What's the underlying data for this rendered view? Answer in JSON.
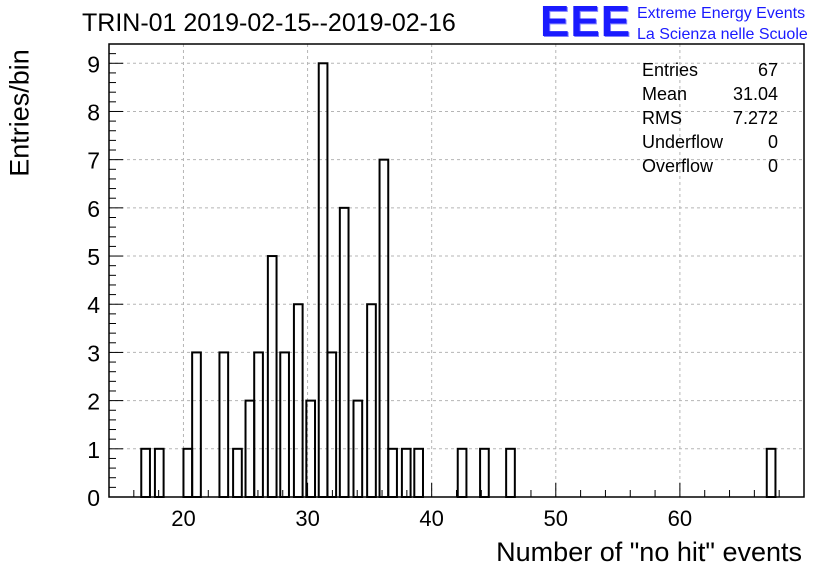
{
  "header": {
    "title": "TRIN-01 2019-02-15--2019-02-16"
  },
  "logo": {
    "letters": "EEE",
    "line1": "Extreme Energy Events",
    "line2": "La Scienza nelle Scuole",
    "color": "#1a1aff"
  },
  "stats": {
    "entries": {
      "label": "Entries",
      "value": "67"
    },
    "mean": {
      "label": "Mean",
      "value": "31.04"
    },
    "rms": {
      "label": "RMS",
      "value": "7.272"
    },
    "underflow": {
      "label": "Underflow",
      "value": "0"
    },
    "overflow": {
      "label": "Overflow",
      "value": "0"
    }
  },
  "chart_data": {
    "type": "bar",
    "title": "TRIN-01 2019-02-15--2019-02-16",
    "xlabel": "Number of \"no hit\" events",
    "ylabel": "Entries/bin",
    "xlim": [
      14,
      70
    ],
    "ylim": [
      0,
      9.4
    ],
    "bin_width": 0.7,
    "x_ticks": [
      20,
      30,
      40,
      50,
      60
    ],
    "y_ticks": [
      0,
      1,
      2,
      3,
      4,
      5,
      6,
      7,
      8,
      9
    ],
    "grid": true,
    "bins": [
      {
        "x": 16.6,
        "count": 1
      },
      {
        "x": 17.7,
        "count": 1
      },
      {
        "x": 20.0,
        "count": 1
      },
      {
        "x": 20.7,
        "count": 3
      },
      {
        "x": 22.9,
        "count": 3
      },
      {
        "x": 24.0,
        "count": 1
      },
      {
        "x": 25.0,
        "count": 2
      },
      {
        "x": 25.7,
        "count": 3
      },
      {
        "x": 26.8,
        "count": 5
      },
      {
        "x": 27.8,
        "count": 3
      },
      {
        "x": 28.9,
        "count": 4
      },
      {
        "x": 29.9,
        "count": 2
      },
      {
        "x": 30.9,
        "count": 9
      },
      {
        "x": 31.6,
        "count": 3
      },
      {
        "x": 32.6,
        "count": 6
      },
      {
        "x": 33.7,
        "count": 2
      },
      {
        "x": 34.8,
        "count": 4
      },
      {
        "x": 35.8,
        "count": 7
      },
      {
        "x": 36.5,
        "count": 1
      },
      {
        "x": 37.6,
        "count": 1
      },
      {
        "x": 38.6,
        "count": 1
      },
      {
        "x": 42.1,
        "count": 1
      },
      {
        "x": 43.9,
        "count": 1
      },
      {
        "x": 46.0,
        "count": 1
      },
      {
        "x": 67.0,
        "count": 1
      }
    ],
    "legend": "top-right"
  }
}
